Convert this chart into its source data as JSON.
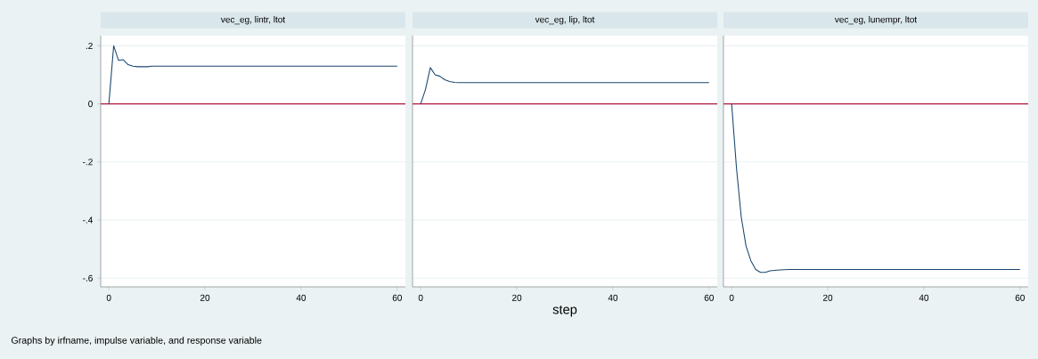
{
  "chart_data": [
    {
      "type": "line",
      "title": "vec_eg, lintr, ltot",
      "annotations": [
        "Graphs by irfname, impulse variable, and response variable"
      ],
      "x": [
        0,
        1,
        2,
        3,
        4,
        5,
        6,
        7,
        8,
        9,
        10,
        20,
        30,
        40,
        50,
        60
      ],
      "series": [
        {
          "color": "#1a476f",
          "values": [
            0,
            0.2,
            0.15,
            0.152,
            0.135,
            0.13,
            0.128,
            0.128,
            0.128,
            0.13,
            0.13,
            0.13,
            0.13,
            0.13,
            0.13,
            0.13
          ]
        }
      ],
      "xlim": [
        -1.7,
        61.7
      ],
      "ylim": [
        -0.63,
        0.235
      ],
      "xticks": [
        0,
        20,
        40,
        60
      ],
      "yticks": [
        {
          "value": 0.2,
          "label": ".2"
        },
        0,
        {
          "value": -0.2,
          "label": "-.2"
        },
        {
          "value": -0.4,
          "label": "-.4"
        },
        {
          "value": -0.6,
          "label": "-.6"
        }
      ],
      "grid": "y",
      "ref_lines": [
        {
          "axis": "y",
          "value": 0,
          "color": "#b2183c"
        }
      ]
    },
    {
      "type": "line",
      "title": "vec_eg, lip, ltot",
      "xlabel": "step",
      "x": [
        0,
        1,
        2,
        3,
        4,
        5,
        6,
        7,
        8,
        10,
        20,
        30,
        40,
        50,
        60
      ],
      "series": [
        {
          "color": "#1a476f",
          "values": [
            0,
            0.05,
            0.125,
            0.1,
            0.095,
            0.083,
            0.077,
            0.074,
            0.073,
            0.073,
            0.073,
            0.073,
            0.073,
            0.073,
            0.073
          ]
        }
      ],
      "xlim": [
        -1.7,
        61.7
      ],
      "ylim": [
        -0.63,
        0.235
      ],
      "xticks": [
        0,
        20,
        40,
        60
      ],
      "yticks": [
        {
          "value": 0.2,
          "label": null
        },
        {
          "value": 0,
          "label": null
        },
        {
          "value": -0.2,
          "label": null
        },
        {
          "value": -0.4,
          "label": null
        },
        {
          "value": -0.6,
          "label": null
        }
      ],
      "grid": "y",
      "tick_labels": "x",
      "ref_lines": [
        {
          "axis": "y",
          "value": 0,
          "color": "#b2183c"
        }
      ]
    },
    {
      "type": "line",
      "title": "vec_eg, lunempr, ltot",
      "x": [
        0,
        1,
        2,
        3,
        4,
        5,
        6,
        7,
        8,
        10,
        12,
        20,
        30,
        40,
        50,
        60
      ],
      "series": [
        {
          "color": "#1a476f",
          "values": [
            0,
            -0.22,
            -0.39,
            -0.49,
            -0.54,
            -0.57,
            -0.58,
            -0.58,
            -0.575,
            -0.572,
            -0.57,
            -0.57,
            -0.57,
            -0.57,
            -0.57,
            -0.57
          ]
        }
      ],
      "xlim": [
        -1.7,
        61.7
      ],
      "ylim": [
        -0.63,
        0.235
      ],
      "xticks": [
        0,
        20,
        40,
        60
      ],
      "yticks": [
        {
          "value": 0.2,
          "label": null
        },
        {
          "value": 0,
          "label": null
        },
        {
          "value": -0.2,
          "label": null
        },
        {
          "value": -0.4,
          "label": null
        },
        {
          "value": -0.6,
          "label": null
        }
      ],
      "grid": "y",
      "tick_labels": "x",
      "ref_lines": [
        {
          "axis": "y",
          "value": 0,
          "color": "#b2183c"
        }
      ]
    }
  ]
}
